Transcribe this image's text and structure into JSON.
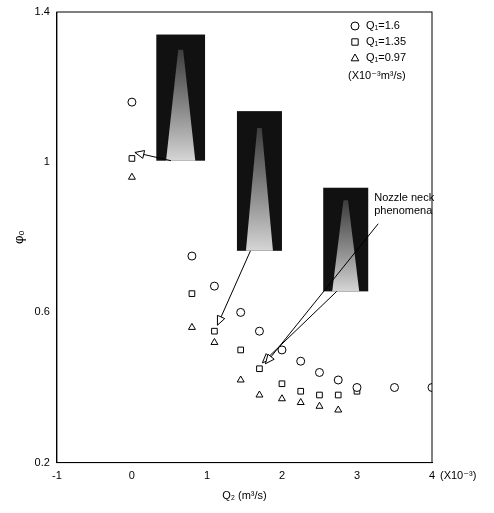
{
  "chart_data": {
    "type": "scatter",
    "x_label": "Q₂ (m³/s)",
    "y_label": "φₒ",
    "xlim": [
      -1,
      4
    ],
    "xticks": [
      -1,
      0,
      1,
      2,
      3,
      4
    ],
    "ylim": [
      0.2,
      1.4
    ],
    "yticks": [
      0.2,
      0.6,
      1,
      1.4
    ],
    "grid": false,
    "legend": "upper right",
    "series": [
      {
        "name": "Q₁=1.6",
        "color": "#000000",
        "marker": "circle",
        "x": [
          0,
          0.8,
          1.1,
          1.45,
          1.7,
          2.0,
          2.25,
          2.5,
          2.75,
          3.0,
          3.5,
          4.0
        ],
        "values": [
          1.16,
          0.75,
          0.67,
          0.6,
          0.55,
          0.5,
          0.47,
          0.44,
          0.42,
          0.4,
          0.4,
          0.4
        ]
      },
      {
        "name": "Q₁=1.35",
        "color": "#000000",
        "marker": "square",
        "x": [
          0,
          0.8,
          1.1,
          1.45,
          1.7,
          2.0,
          2.25,
          2.5,
          2.75,
          3.0
        ],
        "values": [
          1.01,
          0.65,
          0.55,
          0.5,
          0.45,
          0.41,
          0.39,
          0.38,
          0.38,
          0.39
        ]
      },
      {
        "name": "Q₁=0.97",
        "color": "#000000",
        "marker": "triangle",
        "x": [
          0,
          0.8,
          1.1,
          1.45,
          1.7,
          2.0,
          2.25,
          2.5,
          2.75
        ],
        "values": [
          0.96,
          0.56,
          0.52,
          0.42,
          0.38,
          0.37,
          0.36,
          0.35,
          0.34
        ]
      }
    ],
    "annotations": [
      {
        "text": "(X10⁻³)"
      },
      {
        "text": "(X10⁻³m³/s)"
      },
      {
        "text": "Nozzle neck phenomena"
      }
    ]
  }
}
